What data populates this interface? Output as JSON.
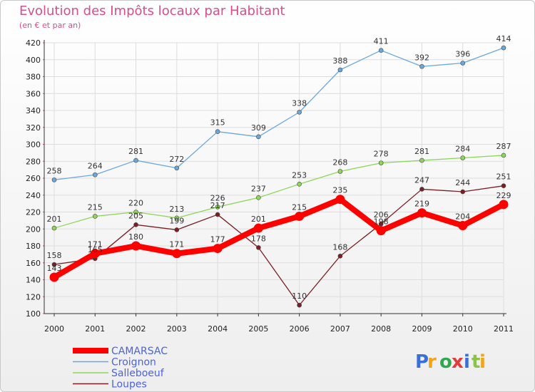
{
  "chart_data": {
    "type": "line",
    "title": "Evolution des Impôts locaux par Habitant",
    "subtitle": "(en € et par an)",
    "x": [
      "2000",
      "2001",
      "2002",
      "2003",
      "2004",
      "2005",
      "2006",
      "2007",
      "2008",
      "2009",
      "2010",
      "2011"
    ],
    "ylim": [
      100,
      420
    ],
    "yticks": [
      100,
      120,
      140,
      160,
      180,
      200,
      220,
      240,
      260,
      280,
      300,
      320,
      340,
      360,
      380,
      400,
      420
    ],
    "grid": true,
    "legend_position": "bottom-left",
    "series": [
      {
        "name": "CAMARSAC",
        "color": "#ff0000",
        "values": [
          143,
          171,
          180,
          171,
          177,
          201,
          215,
          235,
          198,
          219,
          204,
          229
        ]
      },
      {
        "name": "Croignon",
        "color": "#6aa8dc",
        "values": [
          258,
          264,
          281,
          272,
          315,
          309,
          338,
          388,
          411,
          392,
          396,
          414
        ]
      },
      {
        "name": "Salleboeuf",
        "color": "#8ed65a",
        "values": [
          201,
          215,
          220,
          213,
          226,
          237,
          253,
          268,
          278,
          281,
          284,
          287
        ]
      },
      {
        "name": "Loupes",
        "color": "#7a1f25",
        "values": [
          158,
          165,
          205,
          199,
          217,
          178,
          110,
          168,
          206,
          247,
          244,
          251
        ]
      }
    ]
  },
  "logo": {
    "text": "Proxiti",
    "letters": [
      "P",
      "r",
      "o",
      "x",
      "i",
      "t",
      "i"
    ],
    "colors": [
      "#3a6fd8",
      "#f2a21b",
      "#2fa84f",
      "#e23b3b",
      "#3a6fd8",
      "#8bc34a",
      "#f2a21b"
    ]
  }
}
